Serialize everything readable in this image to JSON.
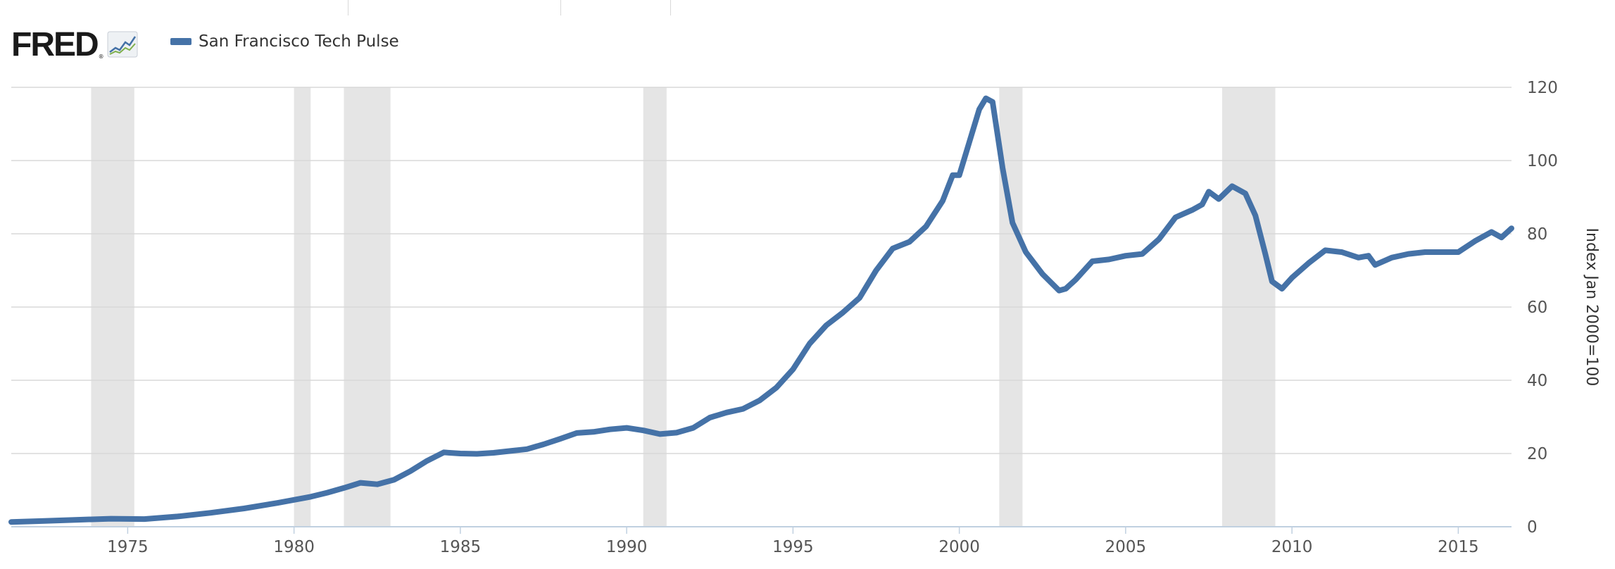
{
  "branding": {
    "logo_text": "FRED",
    "logo_mark": "®",
    "logo_icon": "line-chart-icon"
  },
  "chart_data": {
    "type": "line",
    "title": "",
    "xlabel": "",
    "ylabel": "Index Jan 2000=100",
    "xlim": [
      1971.5,
      2016.6
    ],
    "ylim": [
      0,
      120
    ],
    "grid": true,
    "legend": "top-left",
    "x_ticks": [
      "1975",
      "1980",
      "1985",
      "1990",
      "1995",
      "2000",
      "2005",
      "2010",
      "2015"
    ],
    "y_ticks": [
      "0",
      "20",
      "40",
      "60",
      "80",
      "100",
      "120"
    ],
    "recessions": [
      [
        1973.9,
        1975.2
      ],
      [
        1980.0,
        1980.5
      ],
      [
        1981.5,
        1982.9
      ],
      [
        1990.5,
        1991.2
      ],
      [
        2001.2,
        2001.9
      ],
      [
        2007.9,
        2009.5
      ]
    ],
    "series": [
      {
        "name": "San Francisco Tech Pulse",
        "color": "#4572a7",
        "x": [
          1971.5,
          1972.5,
          1973.5,
          1974.5,
          1975.5,
          1976.5,
          1977.5,
          1978.5,
          1979.5,
          1980.5,
          1981.0,
          1981.5,
          1982.0,
          1982.5,
          1983.0,
          1983.5,
          1984.0,
          1984.5,
          1985.0,
          1985.5,
          1986.0,
          1986.5,
          1987.0,
          1987.5,
          1988.0,
          1988.5,
          1989.0,
          1989.5,
          1990.0,
          1990.5,
          1991.0,
          1991.5,
          1992.0,
          1992.5,
          1993.0,
          1993.5,
          1994.0,
          1994.5,
          1995.0,
          1995.5,
          1996.0,
          1996.5,
          1997.0,
          1997.5,
          1998.0,
          1998.5,
          1999.0,
          1999.5,
          1999.8,
          2000.0,
          2000.3,
          2000.6,
          2000.8,
          2001.0,
          2001.3,
          2001.6,
          2002.0,
          2002.5,
          2003.0,
          2003.2,
          2003.5,
          2004.0,
          2004.5,
          2005.0,
          2005.5,
          2006.0,
          2006.5,
          2007.0,
          2007.3,
          2007.5,
          2007.8,
          2008.2,
          2008.6,
          2008.9,
          2009.2,
          2009.4,
          2009.7,
          2010.0,
          2010.5,
          2011.0,
          2011.5,
          2012.0,
          2012.3,
          2012.5,
          2013.0,
          2013.5,
          2014.0,
          2014.5,
          2015.0,
          2015.5,
          2016.0,
          2016.3,
          2016.6
        ],
        "values": [
          1.3,
          1.6,
          1.9,
          2.2,
          2.1,
          2.8,
          3.8,
          5.0,
          6.5,
          8.2,
          9.3,
          10.6,
          12.0,
          11.6,
          12.8,
          15.2,
          18.0,
          20.3,
          20.0,
          19.9,
          20.2,
          20.7,
          21.2,
          22.5,
          24.0,
          25.6,
          25.9,
          26.6,
          27.0,
          26.3,
          25.3,
          25.7,
          27.0,
          29.8,
          31.2,
          32.2,
          34.5,
          38.0,
          43.0,
          50.0,
          55.0,
          58.5,
          62.5,
          70.0,
          76.0,
          77.8,
          82.0,
          89.0,
          96.0,
          96.0,
          105.0,
          114.0,
          117.0,
          116.0,
          98.0,
          83.0,
          75.0,
          69.0,
          64.5,
          65.0,
          67.5,
          72.5,
          73.0,
          74.0,
          74.5,
          78.5,
          84.5,
          86.5,
          88.0,
          91.5,
          89.5,
          93.0,
          91.0,
          85.0,
          74.5,
          67.0,
          65.0,
          68.0,
          72.0,
          75.5,
          75.0,
          73.5,
          74.0,
          71.5,
          73.5,
          74.5,
          75.0,
          75.0,
          75.0,
          78.0,
          80.5,
          79.0,
          81.5
        ]
      }
    ]
  }
}
